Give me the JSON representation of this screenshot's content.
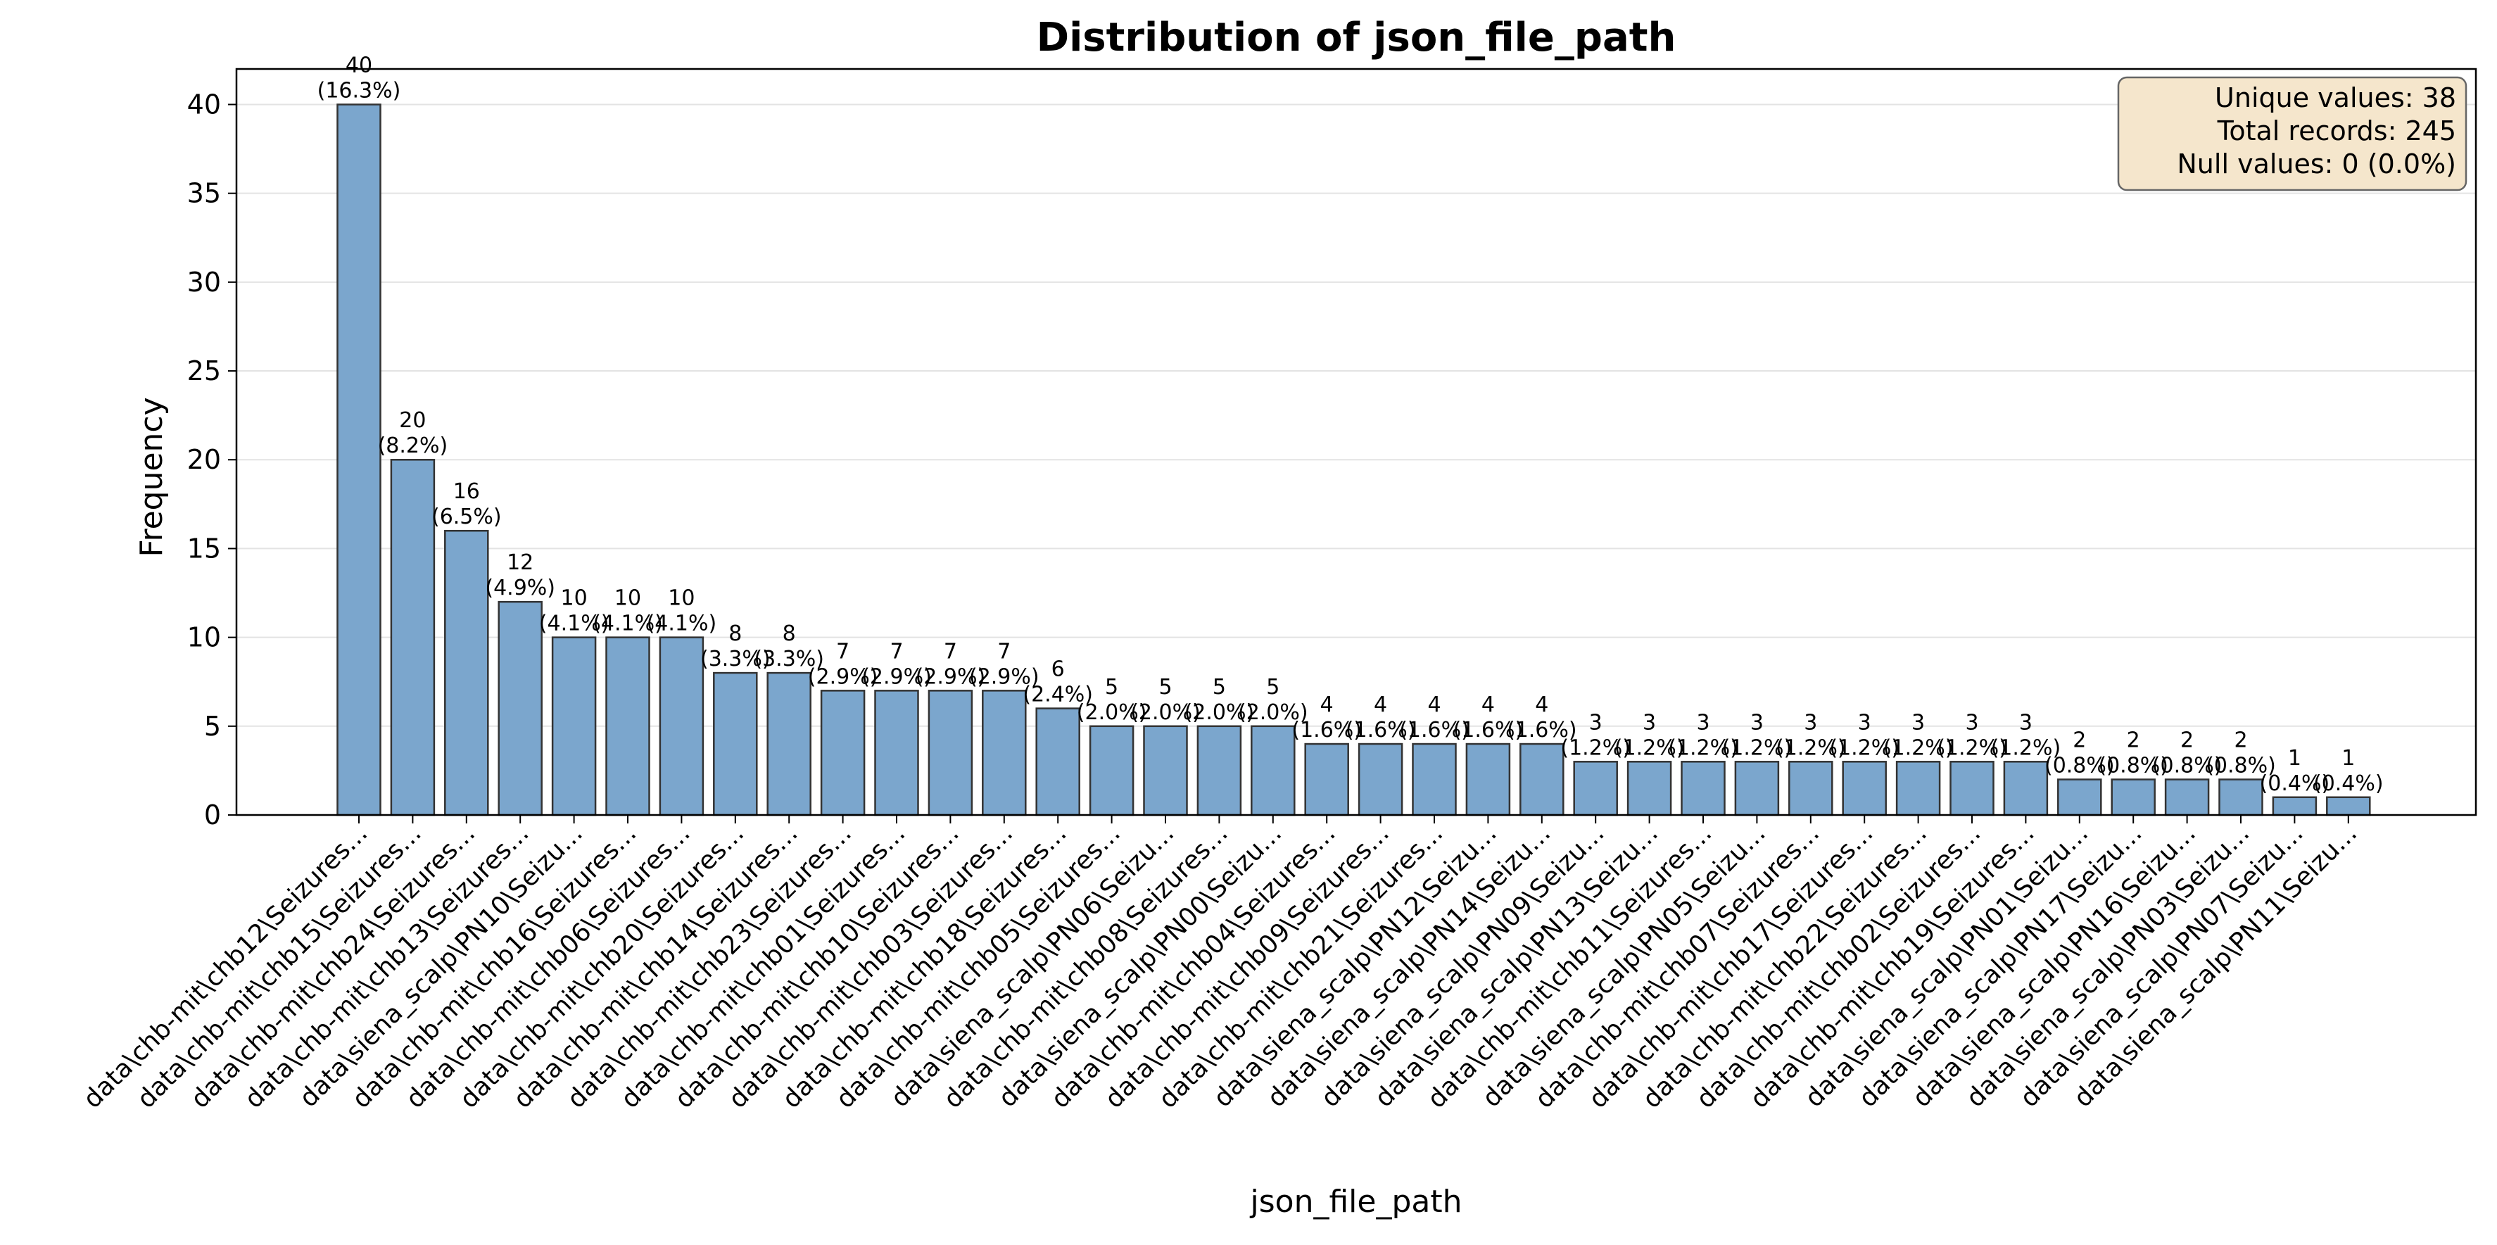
{
  "chart_data": {
    "type": "bar",
    "title": "Distribution of json_file_path",
    "xlabel": "json_file_path",
    "ylabel": "Frequency",
    "ylim": [
      0,
      42
    ],
    "yticks": [
      0,
      5,
      10,
      15,
      20,
      25,
      30,
      35,
      40
    ],
    "grid": "y",
    "bar_color": "#7ba6cd",
    "bar_edge_color": "#333333",
    "categories": [
      "data\\chb-mit\\chb12\\Seizures...",
      "data\\chb-mit\\chb15\\Seizures...",
      "data\\chb-mit\\chb24\\Seizures...",
      "data\\chb-mit\\chb13\\Seizures...",
      "data\\siena_scalp\\PN10\\Seizu...",
      "data\\chb-mit\\chb16\\Seizures...",
      "data\\chb-mit\\chb06\\Seizures...",
      "data\\chb-mit\\chb20\\Seizures...",
      "data\\chb-mit\\chb14\\Seizures...",
      "data\\chb-mit\\chb23\\Seizures...",
      "data\\chb-mit\\chb01\\Seizures...",
      "data\\chb-mit\\chb10\\Seizures...",
      "data\\chb-mit\\chb03\\Seizures...",
      "data\\chb-mit\\chb18\\Seizures...",
      "data\\chb-mit\\chb05\\Seizures...",
      "data\\siena_scalp\\PN06\\Seizu...",
      "data\\chb-mit\\chb08\\Seizures...",
      "data\\siena_scalp\\PN00\\Seizu...",
      "data\\chb-mit\\chb04\\Seizures...",
      "data\\chb-mit\\chb09\\Seizures...",
      "data\\chb-mit\\chb21\\Seizures...",
      "data\\siena_scalp\\PN12\\Seizu...",
      "data\\siena_scalp\\PN14\\Seizu...",
      "data\\siena_scalp\\PN09\\Seizu...",
      "data\\siena_scalp\\PN13\\Seizu...",
      "data\\chb-mit\\chb11\\Seizures...",
      "data\\siena_scalp\\PN05\\Seizu...",
      "data\\chb-mit\\chb07\\Seizures...",
      "data\\chb-mit\\chb17\\Seizures...",
      "data\\chb-mit\\chb22\\Seizures...",
      "data\\chb-mit\\chb02\\Seizures...",
      "data\\chb-mit\\chb19\\Seizures...",
      "data\\siena_scalp\\PN01\\Seizu...",
      "data\\siena_scalp\\PN17\\Seizu...",
      "data\\siena_scalp\\PN16\\Seizu...",
      "data\\siena_scalp\\PN03\\Seizu...",
      "data\\siena_scalp\\PN07\\Seizu...",
      "data\\siena_scalp\\PN11\\Seizu..."
    ],
    "values": [
      40,
      20,
      16,
      12,
      10,
      10,
      10,
      8,
      8,
      7,
      7,
      7,
      7,
      6,
      5,
      5,
      5,
      5,
      4,
      4,
      4,
      4,
      4,
      3,
      3,
      3,
      3,
      3,
      3,
      3,
      3,
      3,
      2,
      2,
      2,
      2,
      1,
      1
    ],
    "percent_labels": [
      "(16.3%)",
      "(8.2%)",
      "(6.5%)",
      "(4.9%)",
      "(4.1%)",
      "(4.1%)",
      "(4.1%)",
      "(3.3%)",
      "(3.3%)",
      "(2.9%)",
      "(2.9%)",
      "(2.9%)",
      "(2.9%)",
      "(2.4%)",
      "(2.0%)",
      "(2.0%)",
      "(2.0%)",
      "(2.0%)",
      "(1.6%)",
      "(1.6%)",
      "(1.6%)",
      "(1.6%)",
      "(1.6%)",
      "(1.2%)",
      "(1.2%)",
      "(1.2%)",
      "(1.2%)",
      "(1.2%)",
      "(1.2%)",
      "(1.2%)",
      "(1.2%)",
      "(1.2%)",
      "(0.8%)",
      "(0.8%)",
      "(0.8%)",
      "(0.8%)",
      "(0.4%)",
      "(0.4%)"
    ],
    "stats_box": {
      "lines": [
        "Unique values: 38",
        "Total records: 245",
        "Null values: 0 (0.0%)"
      ],
      "placement": "top-right",
      "background": "#f5e6cc"
    }
  }
}
